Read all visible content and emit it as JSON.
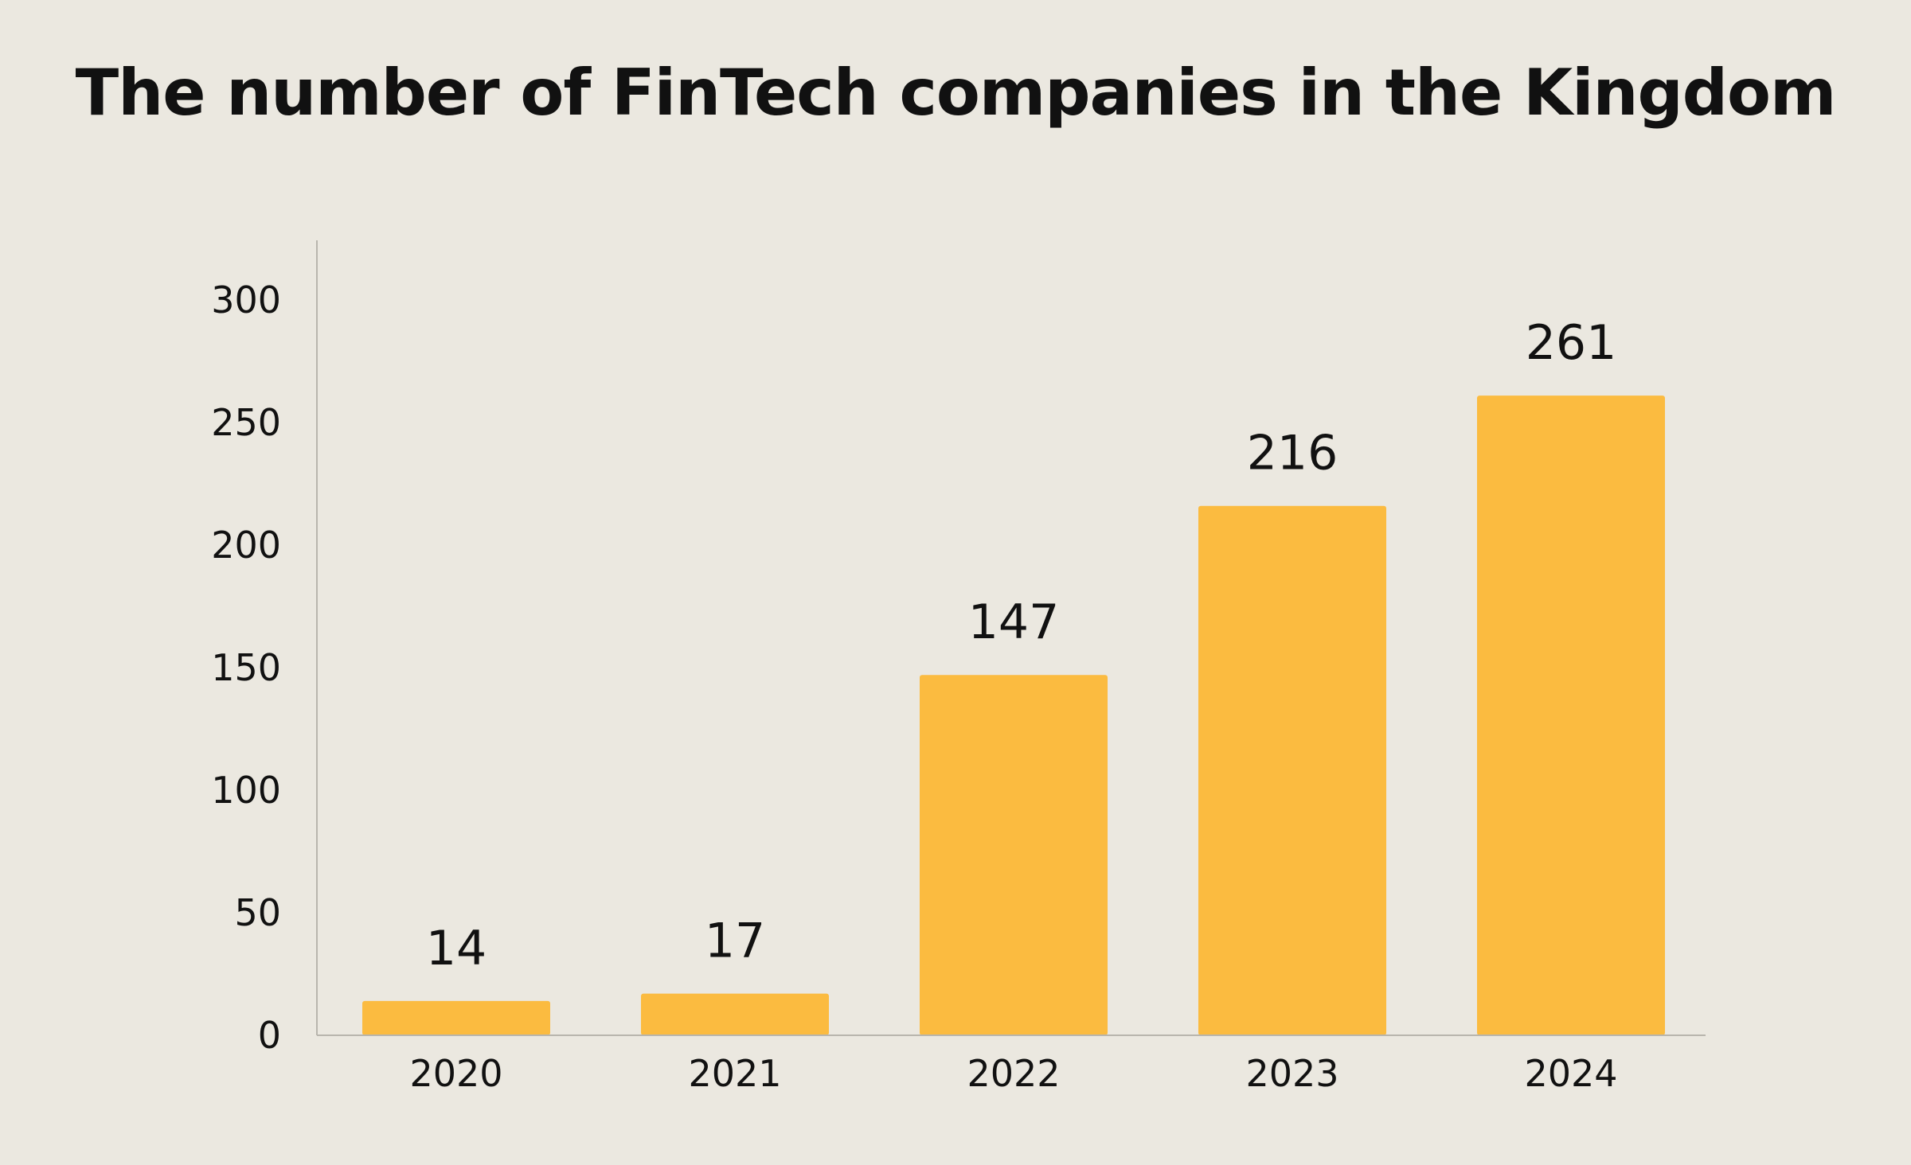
{
  "chart_data": {
    "type": "bar",
    "title": "The number of FinTech companies in the Kingdom",
    "categories": [
      "2020",
      "2021",
      "2022",
      "2023",
      "2024"
    ],
    "values": [
      14,
      17,
      147,
      216,
      261
    ],
    "data_labels": [
      "14",
      "17",
      "147",
      "216",
      "261"
    ],
    "y_ticks": [
      "0",
      "50",
      "100",
      "150",
      "200",
      "250",
      "300"
    ],
    "ylim": [
      0,
      300
    ],
    "xlabel": "",
    "ylabel": "",
    "grid": false,
    "legend": "none",
    "bar_color": "#fbbb40",
    "axis_color": "#b8b5ad",
    "background": "#ebe8e0"
  }
}
